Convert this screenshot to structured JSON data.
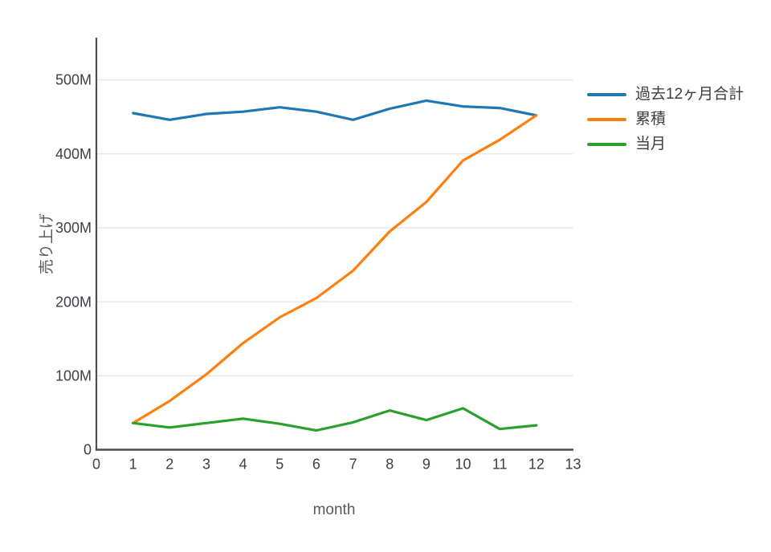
{
  "chart_data": {
    "type": "line",
    "title": "",
    "xlabel": "month",
    "ylabel": "売り上げ",
    "unit": "M",
    "x": [
      1,
      2,
      3,
      4,
      5,
      6,
      7,
      8,
      9,
      10,
      11,
      12
    ],
    "series": [
      {
        "name": "過去12ヶ月合計",
        "color": "#1f77b4",
        "values": [
          455,
          446,
          454,
          457,
          463,
          457,
          446,
          461,
          472,
          464,
          462,
          452
        ]
      },
      {
        "name": "累積",
        "color": "#ff7f0e",
        "values": [
          36,
          66,
          102,
          144,
          179,
          205,
          242,
          295,
          335,
          391,
          419,
          452
        ]
      },
      {
        "name": "当月",
        "color": "#2ca02c",
        "values": [
          36,
          30,
          36,
          42,
          35,
          26,
          37,
          53,
          40,
          56,
          28,
          33
        ]
      }
    ],
    "xlim": [
      0,
      13
    ],
    "ylim": [
      0,
      557
    ],
    "xticks": {
      "values": [
        0,
        1,
        2,
        3,
        4,
        5,
        6,
        7,
        8,
        9,
        10,
        11,
        12,
        13
      ],
      "labels": [
        "0",
        "1",
        "2",
        "3",
        "4",
        "5",
        "6",
        "7",
        "8",
        "9",
        "10",
        "11",
        "12",
        "13"
      ]
    },
    "yticks": {
      "values": [
        0,
        100,
        200,
        300,
        400,
        500
      ],
      "labels": [
        "0",
        "100M",
        "200M",
        "300M",
        "400M",
        "500M"
      ]
    },
    "grid": "horizontal-only",
    "grid_color": "#e9e9e9",
    "axis_color": "#4d4d4d",
    "legend_position": "right-outside"
  }
}
